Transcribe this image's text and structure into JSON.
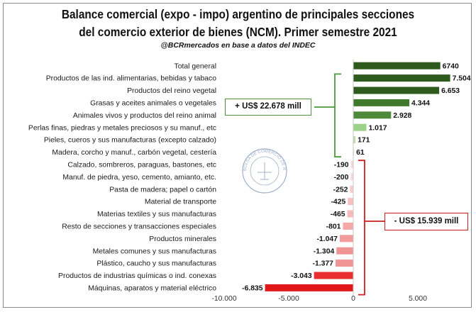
{
  "header": {
    "title_line1": "Balance comercial (expo - impo) argentino de principales secciones",
    "title_line2": "del comercio exterior de bienes (NCM). Primer semestre 2021",
    "subtitle": "@BCRmercados en base a datos del INDEC"
  },
  "annotations": {
    "positive_total": "+ US$ 22.678 mill",
    "negative_total": "- US$ 15.939 mill",
    "positive_bracket_color": "#4a9a3a",
    "negative_bracket_color": "#d02020"
  },
  "watermark": {
    "text": "BOLSA DE COMERCIO DE ROSARIO",
    "icon": "bcr-seal-icon"
  },
  "chart_data": {
    "type": "bar",
    "orientation": "horizontal",
    "categories": [
      "Total general",
      "Productos de las ind. alimentarias, bebidas y tabaco",
      "Productos del reino vegetal",
      "Grasas y aceites animales o vegetales",
      "Animales vivos y productos del reino animal",
      "Perlas finas,  piedras y metales preciosos y su manuf., etc",
      "Pieles, cueros y sus manufacturas (excepto calzado)",
      "Madera, corcho y manuf., carbón vegetal, cestería",
      "Calzado, sombreros, paraguas, bastones, etc",
      "Manuf. de piedra, yeso, cemento, amianto, etc.",
      "Pasta de madera; papel o cartón",
      "Material de transporte",
      "Materias textiles y sus manufacturas",
      "Resto de secciones y transacciones especiales",
      "Productos minerales",
      "Metales comunes y sus manufacturas",
      "Plástico, caucho y sus manufacturas",
      "Productos de industrias químicas o ind. conexas",
      "Máquinas, aparatos y material eléctrico"
    ],
    "values": [
      6740,
      7504,
      6653,
      4344,
      2928,
      1017,
      171,
      61,
      -190,
      -200,
      -252,
      -425,
      -465,
      -801,
      -1047,
      -1304,
      -1377,
      -3043,
      -6835
    ],
    "labels": [
      "6740",
      "7.504",
      "6.653",
      "4.344",
      "2.928",
      "1.017",
      "171",
      "61",
      "-190",
      "-200",
      "-252",
      "-425",
      "-465",
      "-801",
      "-1.047",
      "-1.304",
      "-1.377",
      "-3.043",
      "-6.835"
    ],
    "colors": [
      "#2e5a1e",
      "#2e5a1e",
      "#2e5a1e",
      "#3f7a2e",
      "#4f8a3a",
      "#9cd18a",
      "#b8dda8",
      "#cce8c0",
      "#fbd8d8",
      "#fbd8d8",
      "#f9cccc",
      "#f7c0c0",
      "#f7baba",
      "#f4a8a8",
      "#f29c9c",
      "#f09494",
      "#f09494",
      "#e83030",
      "#e01818"
    ],
    "xlim": [
      -10000,
      7504
    ],
    "xticks": [
      -10000,
      -5000,
      0,
      5000
    ],
    "xtick_labels": [
      "-10.000",
      "-5.000",
      "0",
      "5.000"
    ],
    "grid": false,
    "legend": "none"
  }
}
